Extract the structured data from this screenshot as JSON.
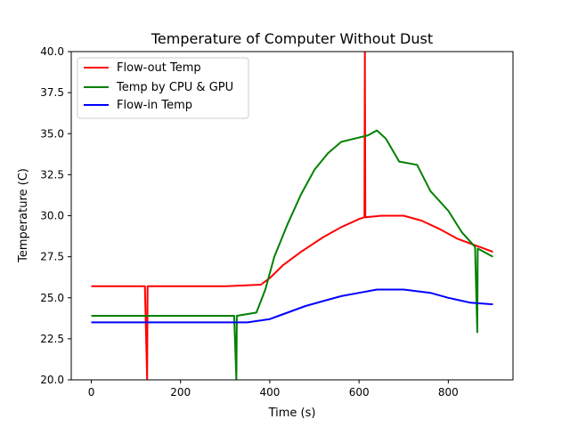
{
  "chart_data": {
    "type": "line",
    "title": "Temperature of Computer Without Dust",
    "xlabel": "Time (s)",
    "ylabel": "Temperature (C)",
    "xlim": [
      -45,
      945
    ],
    "ylim": [
      20.0,
      40.0
    ],
    "xticks": [
      0,
      200,
      400,
      600,
      800
    ],
    "yticks": [
      20.0,
      22.5,
      25.0,
      27.5,
      30.0,
      32.5,
      35.0,
      37.5,
      40.0
    ],
    "xtick_labels": [
      "0",
      "200",
      "400",
      "600",
      "800"
    ],
    "ytick_labels": [
      "20.0",
      "22.5",
      "25.0",
      "27.5",
      "30.0",
      "32.5",
      "35.0",
      "37.5",
      "40.0"
    ],
    "grid": false,
    "legend_position": "top-left",
    "series": [
      {
        "name": "Flow-out Temp",
        "color": "#ff0000",
        "points": [
          [
            0,
            25.7
          ],
          [
            120,
            25.7
          ],
          [
            125,
            20.0
          ],
          [
            126,
            25.7
          ],
          [
            300,
            25.7
          ],
          [
            380,
            25.8
          ],
          [
            400,
            26.2
          ],
          [
            430,
            27.0
          ],
          [
            470,
            27.8
          ],
          [
            520,
            28.7
          ],
          [
            560,
            29.3
          ],
          [
            600,
            29.8
          ],
          [
            612,
            29.9
          ],
          [
            613,
            40.0
          ],
          [
            614,
            29.9
          ],
          [
            650,
            30.0
          ],
          [
            700,
            30.0
          ],
          [
            740,
            29.7
          ],
          [
            780,
            29.2
          ],
          [
            820,
            28.6
          ],
          [
            860,
            28.2
          ],
          [
            900,
            27.8
          ]
        ]
      },
      {
        "name": "Temp by CPU & GPU",
        "color": "#008000",
        "points": [
          [
            0,
            23.9
          ],
          [
            320,
            23.9
          ],
          [
            325,
            20.0
          ],
          [
            326,
            23.9
          ],
          [
            370,
            24.1
          ],
          [
            390,
            25.5
          ],
          [
            410,
            27.5
          ],
          [
            440,
            29.5
          ],
          [
            470,
            31.3
          ],
          [
            500,
            32.8
          ],
          [
            530,
            33.8
          ],
          [
            560,
            34.5
          ],
          [
            590,
            34.7
          ],
          [
            620,
            34.9
          ],
          [
            640,
            35.2
          ],
          [
            660,
            34.7
          ],
          [
            690,
            33.3
          ],
          [
            730,
            33.1
          ],
          [
            760,
            31.5
          ],
          [
            800,
            30.3
          ],
          [
            830,
            29.0
          ],
          [
            860,
            28.1
          ],
          [
            865,
            22.9
          ],
          [
            866,
            28.0
          ],
          [
            900,
            27.5
          ]
        ]
      },
      {
        "name": "Flow-in Temp",
        "color": "#0000ff",
        "points": [
          [
            0,
            23.5
          ],
          [
            200,
            23.5
          ],
          [
            350,
            23.5
          ],
          [
            400,
            23.7
          ],
          [
            420,
            23.9
          ],
          [
            450,
            24.2
          ],
          [
            480,
            24.5
          ],
          [
            520,
            24.8
          ],
          [
            560,
            25.1
          ],
          [
            600,
            25.3
          ],
          [
            640,
            25.5
          ],
          [
            700,
            25.5
          ],
          [
            760,
            25.3
          ],
          [
            800,
            25.0
          ],
          [
            850,
            24.7
          ],
          [
            900,
            24.6
          ]
        ]
      }
    ]
  }
}
